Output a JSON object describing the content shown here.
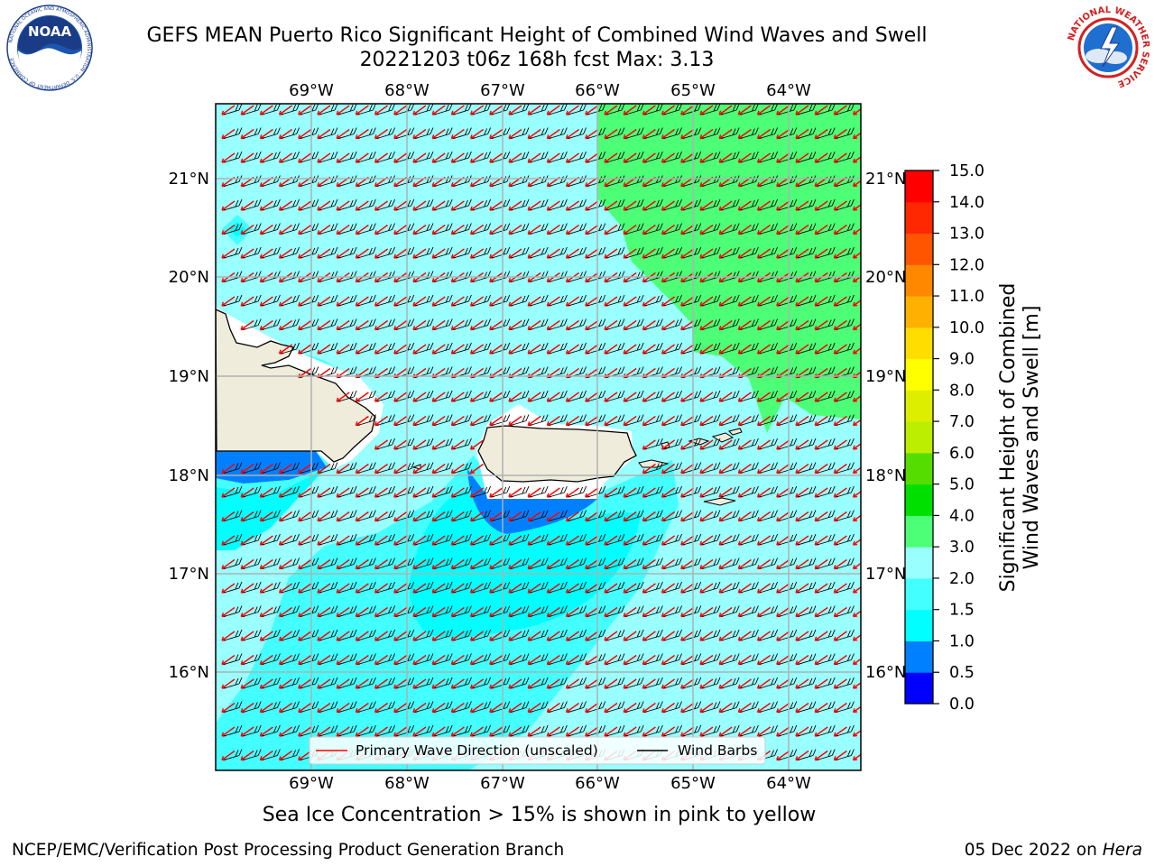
{
  "header": {
    "title_line1": "GEFS MEAN Puerto Rico Significant Height of Combined Wind Waves and Swell",
    "title_line2": "20221203 t06z 168h fcst   Max: 3.13"
  },
  "logos": {
    "left": {
      "name": "noaa-logo",
      "text": "NOAA",
      "ring_text": "NATIONAL OCEANIC AND ATMOSPHERIC ADMINISTRATION · U.S. DEPARTMENT OF COMMERCE"
    },
    "right": {
      "name": "nws-logo",
      "ring_text": "NATIONAL WEATHER SERVICE"
    }
  },
  "map": {
    "lon_labels": [
      "69°W",
      "68°W",
      "67°W",
      "66°W",
      "65°W",
      "64°W"
    ],
    "lat_labels": [
      "21°N",
      "20°N",
      "19°N",
      "18°N",
      "17°N",
      "16°N"
    ],
    "legend": {
      "wave_label": "Primary Wave Direction (unscaled)",
      "barb_label": "Wind Barbs",
      "wave_color": "#ff0000",
      "barb_color": "#000000"
    },
    "colors": {
      "land": "#efecdc",
      "coast": "#000000",
      "grid": "#b0b0b0"
    }
  },
  "colorbar": {
    "label": "Significant Height of Combined Wind Waves and Swell [m]",
    "label_line1": "Significant Height of Combined",
    "label_line2": "Wind Waves and Swell [m]",
    "ticks": [
      "0.0",
      "0.5",
      "1.0",
      "1.5",
      "2.0",
      "3.0",
      "4.0",
      "5.0",
      "6.0",
      "7.0",
      "8.0",
      "9.0",
      "10.0",
      "11.0",
      "12.0",
      "13.0",
      "14.0",
      "15.0"
    ],
    "colors": [
      "#0000ff",
      "#0080ff",
      "#00ffff",
      "#44ffff",
      "#99ffff",
      "#4dff77",
      "#00e000",
      "#55dd00",
      "#bbee00",
      "#ddee00",
      "#ffff00",
      "#ffdd00",
      "#ffb000",
      "#ff8800",
      "#ff5500",
      "#ff2800",
      "#ff0000"
    ]
  },
  "note": "Sea Ice Concentration > 15% is shown in pink to yellow",
  "footer": {
    "left": "NCEP/EMC/Verification Post Processing Product Generation Branch",
    "right_prefix": "05 Dec 2022 on ",
    "right_host": "Hera"
  }
}
